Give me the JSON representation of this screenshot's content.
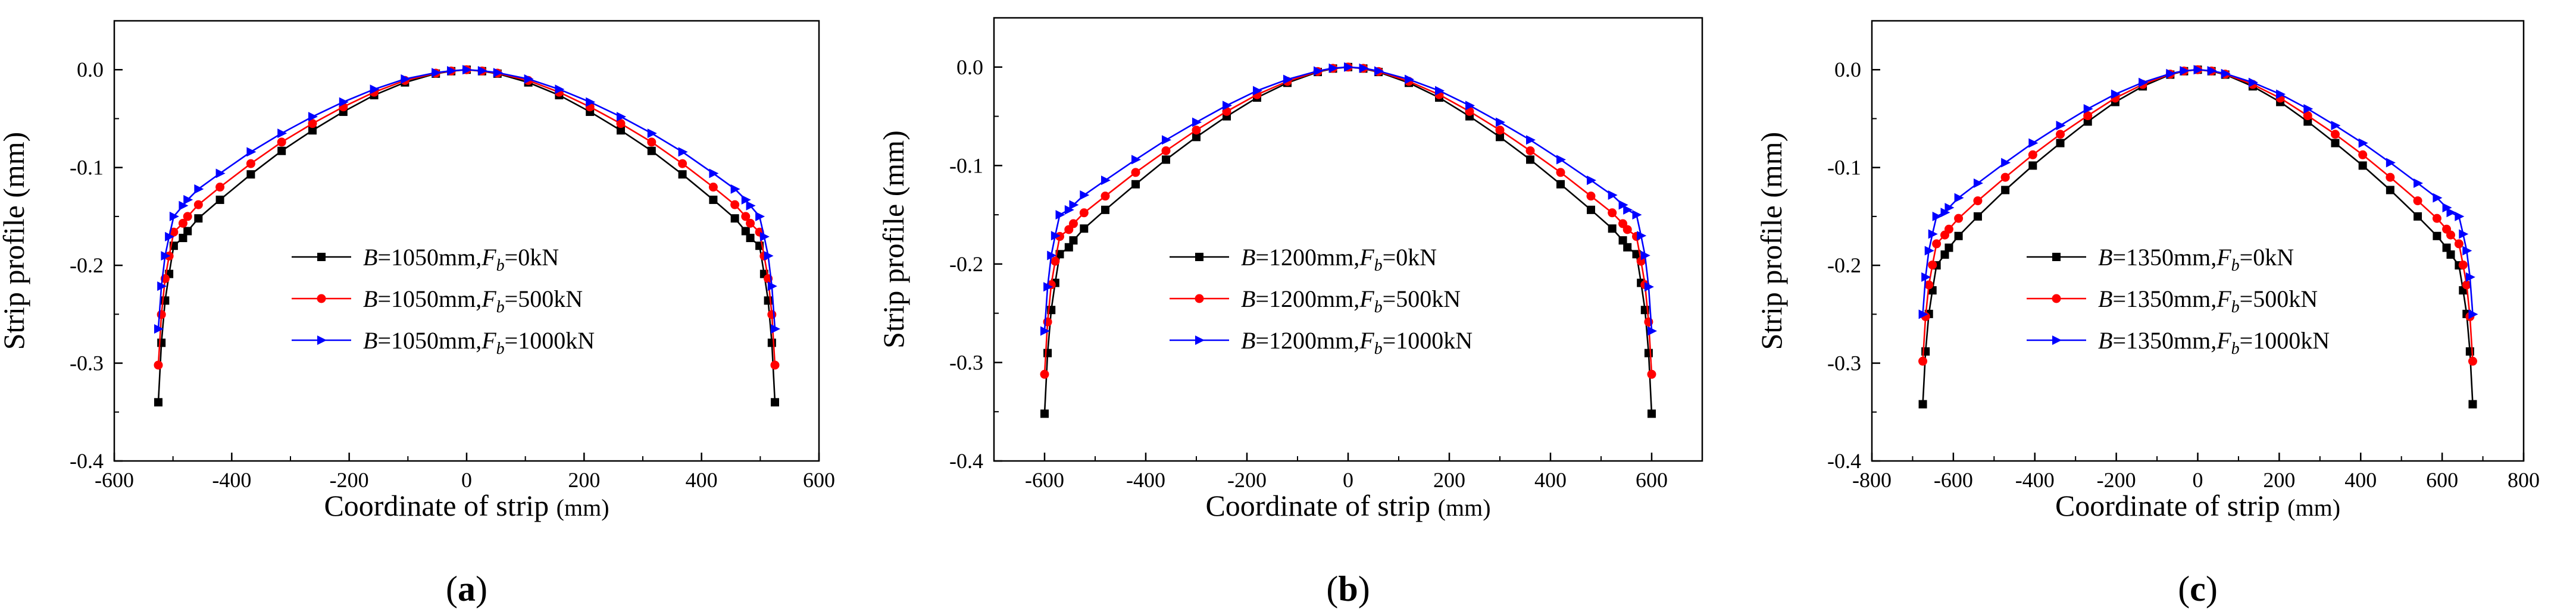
{
  "chart_data": [
    {
      "type": "line",
      "panel_label_paren_open": "(",
      "panel_label_letter": "a",
      "panel_label_paren_close": ")",
      "xlabel": "Coordinate of strip",
      "xlabel_unit": "(mm)",
      "ylabel": "Strip profile (mm)",
      "xlim": [
        -600,
        600
      ],
      "ylim": [
        -0.4,
        0.05
      ],
      "xticks": [
        -600,
        -400,
        -200,
        0,
        200,
        400,
        600
      ],
      "xtick_labels": [
        "-600",
        "-400",
        "-200",
        "0",
        "200",
        "400",
        "600"
      ],
      "yticks": [
        0.0,
        -0.1,
        -0.2,
        -0.3,
        -0.4
      ],
      "ytick_labels": [
        "0.0",
        "-0.1",
        "-0.2",
        "-0.3",
        "-0.4"
      ],
      "half_width": 525,
      "legend_position": "center",
      "series": [
        {
          "name": "B=1050mm,Fb=0kN",
          "legend_label": {
            "B": "B",
            "w": "=1050mm,",
            "F": "F",
            "sub": "b",
            "load": "=0kN"
          },
          "color": "#000000",
          "marker": "square",
          "edge_y": -0.34,
          "knee_y": -0.18,
          "profile": [
            [
              0,
              0
            ],
            [
              0.05,
              -0.0015
            ],
            [
              0.1,
              -0.004
            ],
            [
              0.2,
              -0.013
            ],
            [
              0.3,
              -0.026
            ],
            [
              0.4,
              -0.043
            ],
            [
              0.5,
              -0.062
            ],
            [
              0.6,
              -0.083
            ],
            [
              0.7,
              -0.107
            ],
            [
              0.8,
              -0.133
            ],
            [
              0.87,
              -0.152
            ],
            [
              0.905,
              -0.165
            ],
            [
              0.92,
              -0.172
            ]
          ]
        },
        {
          "name": "B=1050mm,Fb=500kN",
          "legend_label": {
            "B": "B",
            "w": "=1050mm,",
            "F": "F",
            "sub": "b",
            "load": "=500kN"
          },
          "color": "#ff0000",
          "marker": "circle",
          "edge_y": -0.302,
          "knee_y": -0.166,
          "profile": [
            [
              0,
              0
            ],
            [
              0.05,
              -0.0013
            ],
            [
              0.1,
              -0.0035
            ],
            [
              0.2,
              -0.011
            ],
            [
              0.3,
              -0.023
            ],
            [
              0.4,
              -0.038
            ],
            [
              0.5,
              -0.055
            ],
            [
              0.6,
              -0.074
            ],
            [
              0.7,
              -0.096
            ],
            [
              0.8,
              -0.12
            ],
            [
              0.87,
              -0.138
            ],
            [
              0.905,
              -0.15
            ],
            [
              0.92,
              -0.157
            ]
          ]
        },
        {
          "name": "B=1050mm,Fb=1000kN",
          "legend_label": {
            "B": "B",
            "w": "=1050mm,",
            "F": "F",
            "sub": "b",
            "load": "=1000kN"
          },
          "color": "#0000ff",
          "marker": "triangle",
          "edge_y": -0.265,
          "knee_y": -0.15,
          "profile": [
            [
              0,
              0
            ],
            [
              0.05,
              -0.0011
            ],
            [
              0.1,
              -0.003
            ],
            [
              0.2,
              -0.0095
            ],
            [
              0.3,
              -0.02
            ],
            [
              0.4,
              -0.033
            ],
            [
              0.5,
              -0.048
            ],
            [
              0.6,
              -0.065
            ],
            [
              0.7,
              -0.084
            ],
            [
              0.8,
              -0.106
            ],
            [
              0.87,
              -0.122
            ],
            [
              0.905,
              -0.133
            ],
            [
              0.92,
              -0.139
            ]
          ]
        }
      ]
    },
    {
      "type": "line",
      "panel_label_paren_open": "(",
      "panel_label_letter": "b",
      "panel_label_paren_close": ")",
      "xlabel": "Coordinate of strip",
      "xlabel_unit": "(mm)",
      "ylabel": "Strip profile (mm)",
      "xlim": [
        -700,
        700
      ],
      "ylim": [
        -0.4,
        0.05
      ],
      "xticks": [
        -600,
        -400,
        -200,
        0,
        200,
        400,
        600
      ],
      "xtick_labels": [
        "-600",
        "-400",
        "-200",
        "0",
        "200",
        "400",
        "600"
      ],
      "yticks": [
        0.0,
        -0.1,
        -0.2,
        -0.3,
        -0.4
      ],
      "ytick_labels": [
        "0.0",
        "-0.1",
        "-0.2",
        "-0.3",
        "-0.4"
      ],
      "half_width": 600,
      "legend_position": "center",
      "series": [
        {
          "name": "B=1200mm,Fb=0kN",
          "legend_label": {
            "B": "B",
            "w": "=1200mm,",
            "F": "F",
            "sub": "b",
            "load": "=0kN"
          },
          "color": "#000000",
          "marker": "square",
          "edge_y": -0.352,
          "knee_y": -0.19,
          "profile": [
            [
              0,
              0
            ],
            [
              0.05,
              -0.0015
            ],
            [
              0.1,
              -0.005
            ],
            [
              0.2,
              -0.016
            ],
            [
              0.3,
              -0.031
            ],
            [
              0.4,
              -0.05
            ],
            [
              0.5,
              -0.071
            ],
            [
              0.6,
              -0.094
            ],
            [
              0.7,
              -0.119
            ],
            [
              0.8,
              -0.145
            ],
            [
              0.87,
              -0.164
            ],
            [
              0.905,
              -0.176
            ],
            [
              0.92,
              -0.183
            ]
          ]
        },
        {
          "name": "B=1200mm,Fb=500kN",
          "legend_label": {
            "B": "B",
            "w": "=1200mm,",
            "F": "F",
            "sub": "b",
            "load": "=500kN"
          },
          "color": "#ff0000",
          "marker": "circle",
          "edge_y": -0.312,
          "knee_y": -0.172,
          "profile": [
            [
              0,
              0
            ],
            [
              0.05,
              -0.0013
            ],
            [
              0.1,
              -0.0045
            ],
            [
              0.2,
              -0.0145
            ],
            [
              0.3,
              -0.028
            ],
            [
              0.4,
              -0.045
            ],
            [
              0.5,
              -0.064
            ],
            [
              0.6,
              -0.085
            ],
            [
              0.7,
              -0.107
            ],
            [
              0.8,
              -0.131
            ],
            [
              0.87,
              -0.148
            ],
            [
              0.905,
              -0.159
            ],
            [
              0.92,
              -0.165
            ]
          ]
        },
        {
          "name": "B=1200mm,Fb=1000kN",
          "legend_label": {
            "B": "B",
            "w": "=1200mm,",
            "F": "F",
            "sub": "b",
            "load": "=1000kN"
          },
          "color": "#0000ff",
          "marker": "triangle",
          "edge_y": -0.268,
          "knee_y": -0.15,
          "profile": [
            [
              0,
              0
            ],
            [
              0.05,
              -0.0011
            ],
            [
              0.1,
              -0.004
            ],
            [
              0.2,
              -0.0125
            ],
            [
              0.3,
              -0.024
            ],
            [
              0.4,
              -0.039
            ],
            [
              0.5,
              -0.056
            ],
            [
              0.6,
              -0.074
            ],
            [
              0.7,
              -0.094
            ],
            [
              0.8,
              -0.115
            ],
            [
              0.87,
              -0.13
            ],
            [
              0.905,
              -0.14
            ],
            [
              0.92,
              -0.145
            ]
          ]
        }
      ]
    },
    {
      "type": "line",
      "panel_label_paren_open": "(",
      "panel_label_letter": "c",
      "panel_label_paren_close": ")",
      "xlabel": "Coordinate of strip",
      "xlabel_unit": "(mm)",
      "ylabel": "Strip profile (mm)",
      "xlim": [
        -800,
        800
      ],
      "ylim": [
        -0.4,
        0.05
      ],
      "xticks": [
        -800,
        -600,
        -400,
        -200,
        0,
        200,
        400,
        600,
        800
      ],
      "xtick_labels": [
        "-800",
        "-600",
        "-400",
        "-200",
        "0",
        "200",
        "400",
        "600",
        "800"
      ],
      "yticks": [
        0.0,
        -0.1,
        -0.2,
        -0.3,
        -0.4
      ],
      "ytick_labels": [
        "0.0",
        "-0.1",
        "-0.2",
        "-0.3",
        "-0.4"
      ],
      "half_width": 675,
      "legend_position": "center",
      "series": [
        {
          "name": "B=1350mm,Fb=0kN",
          "legend_label": {
            "B": "B",
            "w": "=1350mm,",
            "F": "F",
            "sub": "b",
            "load": "=0kN"
          },
          "color": "#000000",
          "marker": "square",
          "edge_y": -0.342,
          "knee_y": -0.2,
          "profile": [
            [
              0,
              0
            ],
            [
              0.05,
              -0.0015
            ],
            [
              0.1,
              -0.005
            ],
            [
              0.2,
              -0.017
            ],
            [
              0.3,
              -0.033
            ],
            [
              0.4,
              -0.053
            ],
            [
              0.5,
              -0.075
            ],
            [
              0.6,
              -0.098
            ],
            [
              0.7,
              -0.123
            ],
            [
              0.8,
              -0.15
            ],
            [
              0.87,
              -0.17
            ],
            [
              0.905,
              -0.182
            ],
            [
              0.92,
              -0.189
            ]
          ]
        },
        {
          "name": "B=1350mm,Fb=500kN",
          "legend_label": {
            "B": "B",
            "w": "=1350mm,",
            "F": "F",
            "sub": "b",
            "load": "=500kN"
          },
          "color": "#ff0000",
          "marker": "circle",
          "edge_y": -0.298,
          "knee_y": -0.178,
          "profile": [
            [
              0,
              0
            ],
            [
              0.05,
              -0.0013
            ],
            [
              0.1,
              -0.0045
            ],
            [
              0.2,
              -0.015
            ],
            [
              0.3,
              -0.029
            ],
            [
              0.4,
              -0.047
            ],
            [
              0.5,
              -0.066
            ],
            [
              0.6,
              -0.087
            ],
            [
              0.7,
              -0.11
            ],
            [
              0.8,
              -0.134
            ],
            [
              0.87,
              -0.152
            ],
            [
              0.905,
              -0.163
            ],
            [
              0.92,
              -0.169
            ]
          ]
        },
        {
          "name": "B=1350mm,Fb=1000kN",
          "legend_label": {
            "B": "B",
            "w": "=1350mm,",
            "F": "F",
            "sub": "b",
            "load": "=1000kN"
          },
          "color": "#0000ff",
          "marker": "triangle",
          "edge_y": -0.25,
          "knee_y": -0.15,
          "profile": [
            [
              0,
              0
            ],
            [
              0.05,
              -0.0011
            ],
            [
              0.1,
              -0.004
            ],
            [
              0.2,
              -0.013
            ],
            [
              0.3,
              -0.025
            ],
            [
              0.4,
              -0.04
            ],
            [
              0.5,
              -0.057
            ],
            [
              0.6,
              -0.075
            ],
            [
              0.7,
              -0.095
            ],
            [
              0.8,
              -0.116
            ],
            [
              0.87,
              -0.131
            ],
            [
              0.905,
              -0.141
            ],
            [
              0.92,
              -0.146
            ]
          ]
        }
      ]
    }
  ]
}
